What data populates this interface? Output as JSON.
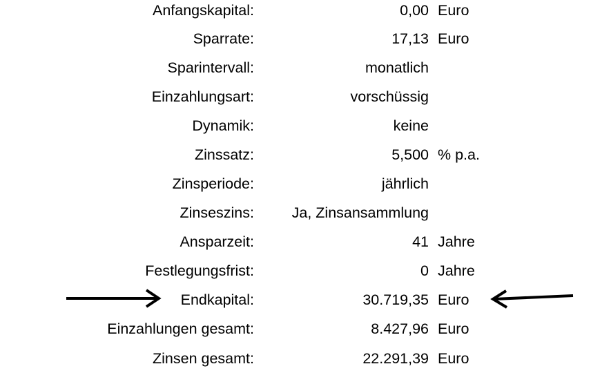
{
  "rows": [
    {
      "label": "Anfangskapital:",
      "value": "0,00",
      "unit": "Euro"
    },
    {
      "label": "Sparrate:",
      "value": "17,13",
      "unit": "Euro"
    },
    {
      "label": "Sparintervall:",
      "value": "monatlich",
      "unit": ""
    },
    {
      "label": "Einzahlungsart:",
      "value": "vorschüssig",
      "unit": ""
    },
    {
      "label": "Dynamik:",
      "value": "keine",
      "unit": ""
    },
    {
      "label": "Zinssatz:",
      "value": "5,500",
      "unit": "% p.a."
    },
    {
      "label": "Zinsperiode:",
      "value": "jährlich",
      "unit": ""
    },
    {
      "label": "Zinseszins:",
      "value": "Ja, Zinsansammlung",
      "unit": ""
    },
    {
      "label": "Ansparzeit:",
      "value": "41",
      "unit": "Jahre"
    },
    {
      "label": "Festlegungsfrist:",
      "value": "0",
      "unit": "Jahre"
    },
    {
      "label": "Endkapital:",
      "value": "30.719,35",
      "unit": "Euro"
    },
    {
      "label": "Einzahlungen gesamt:",
      "value": "8.427,96",
      "unit": "Euro"
    },
    {
      "label": "Zinsen gesamt:",
      "value": "22.291,39",
      "unit": "Euro"
    }
  ],
  "highlight_icons": [
    "arrow-right-icon",
    "arrow-left-icon"
  ]
}
